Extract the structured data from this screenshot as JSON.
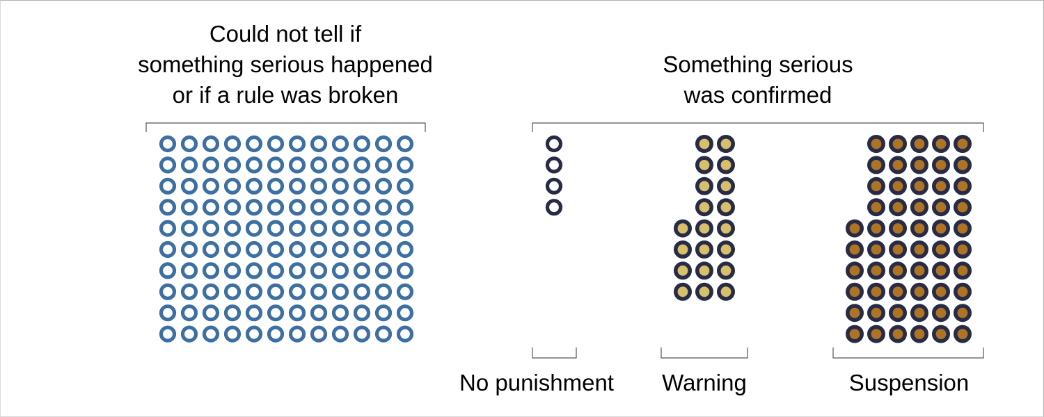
{
  "colors": {
    "unclear_ring": "#3d6fa1",
    "dark_ring": "#272b45",
    "warning_fill": "#d7bf6c",
    "suspension_fill": "#ad7426",
    "bracket": "#555555"
  },
  "chart_data": {
    "type": "waffle",
    "groups": [
      {
        "title_lines": [
          "Could not tell if",
          "something serious happened",
          "or if a rule was broken"
        ],
        "categories": [
          {
            "label": "",
            "count": 120,
            "style": "ring",
            "ring_color": "#3d6fa1"
          }
        ]
      },
      {
        "title_lines": [
          "Something serious",
          "was confirmed"
        ],
        "categories": [
          {
            "label": "No punishment",
            "count": 4,
            "style": "ring",
            "ring_color": "#272b45"
          },
          {
            "label": "Warning",
            "count": 20,
            "style": "filled",
            "ring_color": "#272b45",
            "fill_color": "#d7bf6c"
          },
          {
            "label": "Suspension",
            "count": 56,
            "style": "filled",
            "ring_color": "#272b45",
            "fill_color": "#ad7426"
          }
        ]
      }
    ]
  }
}
